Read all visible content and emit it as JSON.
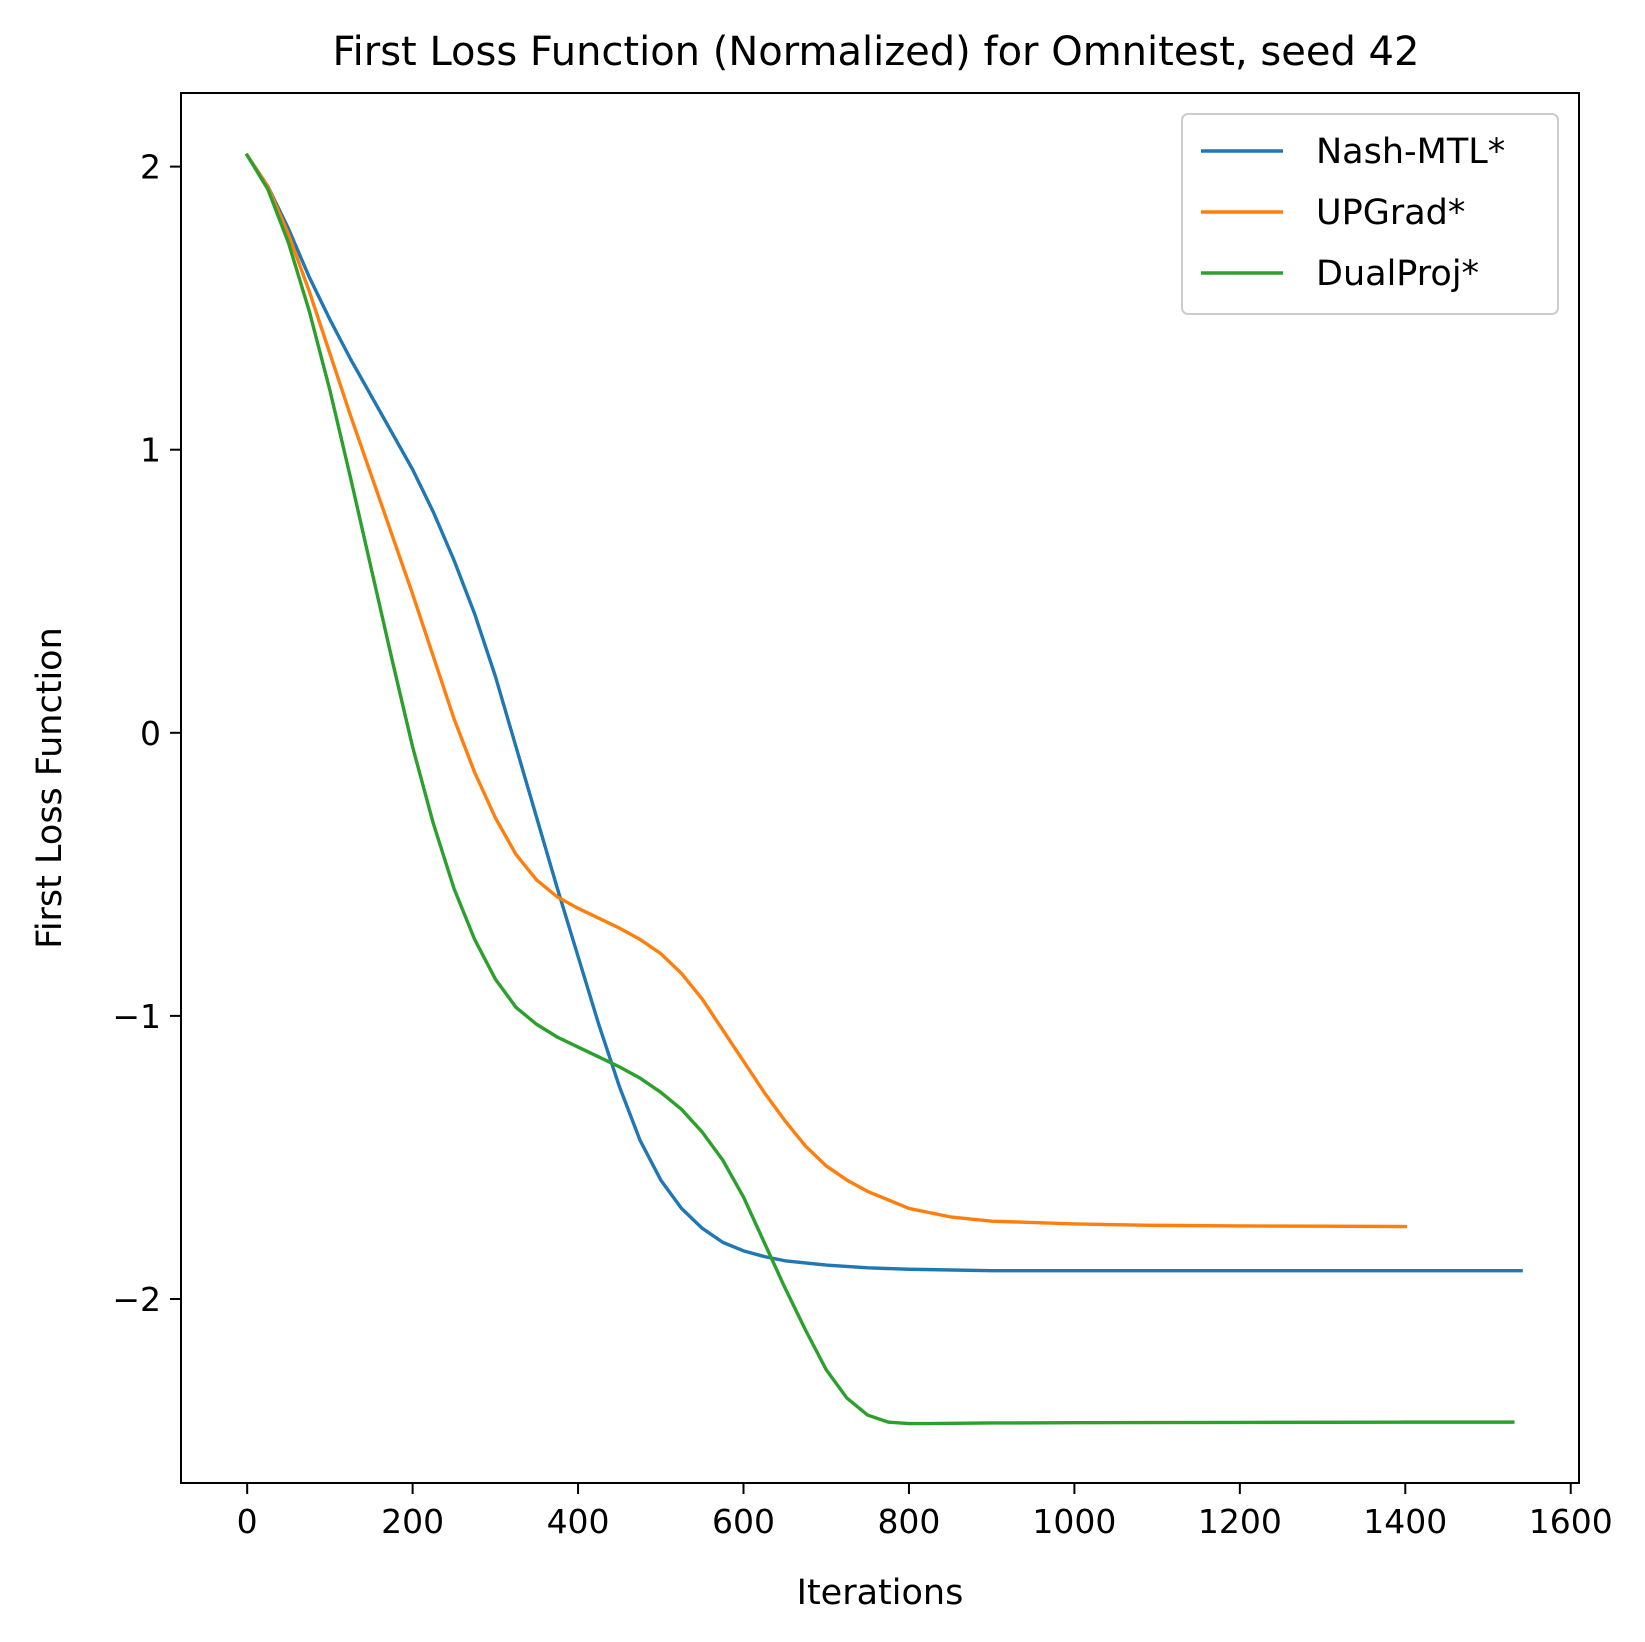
{
  "chart_data": {
    "type": "line",
    "title": "First Loss Function (Normalized) for Omnitest, seed 42",
    "xlabel": "Iterations",
    "ylabel": "First Loss Function",
    "xlim": [
      -80,
      1610
    ],
    "ylim": [
      -2.65,
      2.26
    ],
    "xticks": [
      0,
      200,
      400,
      600,
      800,
      1000,
      1200,
      1400,
      1600
    ],
    "xtick_labels": [
      "0",
      "200",
      "400",
      "600",
      "800",
      "1000",
      "1200",
      "1400",
      "1600"
    ],
    "yticks": [
      2,
      1,
      0,
      -1,
      -2
    ],
    "ytick_labels": [
      "2",
      "1",
      "0",
      "−1",
      "−2"
    ],
    "grid": false,
    "legend_position": "top-right",
    "series": [
      {
        "name": "Nash-MTL*",
        "color": "#1f77b4",
        "x": [
          0,
          25,
          50,
          75,
          100,
          125,
          150,
          175,
          200,
          225,
          250,
          275,
          300,
          325,
          350,
          375,
          400,
          425,
          450,
          475,
          500,
          525,
          550,
          575,
          600,
          625,
          650,
          700,
          750,
          800,
          900,
          1000,
          1200,
          1400,
          1540
        ],
        "y": [
          2.04,
          1.93,
          1.78,
          1.61,
          1.46,
          1.32,
          1.19,
          1.06,
          0.93,
          0.78,
          0.61,
          0.42,
          0.2,
          -0.05,
          -0.3,
          -0.55,
          -0.79,
          -1.03,
          -1.25,
          -1.44,
          -1.58,
          -1.68,
          -1.75,
          -1.8,
          -1.83,
          -1.85,
          -1.865,
          -1.88,
          -1.89,
          -1.895,
          -1.9,
          -1.9,
          -1.9,
          -1.9,
          -1.9
        ]
      },
      {
        "name": "UPGrad*",
        "color": "#ff7f0e",
        "x": [
          0,
          25,
          50,
          75,
          100,
          125,
          150,
          175,
          200,
          225,
          250,
          275,
          300,
          325,
          350,
          375,
          400,
          425,
          450,
          475,
          500,
          525,
          550,
          575,
          600,
          625,
          650,
          675,
          700,
          725,
          750,
          800,
          850,
          900,
          1000,
          1100,
          1200,
          1300,
          1400
        ],
        "y": [
          2.04,
          1.93,
          1.76,
          1.56,
          1.34,
          1.12,
          0.91,
          0.7,
          0.49,
          0.27,
          0.05,
          -0.14,
          -0.3,
          -0.43,
          -0.52,
          -0.58,
          -0.62,
          -0.655,
          -0.69,
          -0.73,
          -0.78,
          -0.85,
          -0.94,
          -1.05,
          -1.16,
          -1.27,
          -1.37,
          -1.46,
          -1.53,
          -1.58,
          -1.62,
          -1.68,
          -1.71,
          -1.725,
          -1.735,
          -1.74,
          -1.742,
          -1.743,
          -1.744
        ]
      },
      {
        "name": "DualProj*",
        "color": "#2ca02c",
        "x": [
          0,
          25,
          50,
          75,
          100,
          125,
          150,
          175,
          200,
          225,
          250,
          275,
          300,
          325,
          350,
          375,
          400,
          425,
          450,
          475,
          500,
          525,
          550,
          575,
          600,
          625,
          650,
          675,
          700,
          725,
          750,
          775,
          800,
          825,
          900,
          1000,
          1200,
          1400,
          1530
        ],
        "y": [
          2.04,
          1.92,
          1.73,
          1.49,
          1.21,
          0.9,
          0.58,
          0.26,
          -0.05,
          -0.32,
          -0.55,
          -0.73,
          -0.87,
          -0.97,
          -1.03,
          -1.075,
          -1.11,
          -1.145,
          -1.18,
          -1.22,
          -1.27,
          -1.33,
          -1.41,
          -1.51,
          -1.64,
          -1.8,
          -1.96,
          -2.11,
          -2.25,
          -2.35,
          -2.41,
          -2.435,
          -2.44,
          -2.44,
          -2.438,
          -2.437,
          -2.436,
          -2.435,
          -2.435
        ]
      }
    ]
  }
}
